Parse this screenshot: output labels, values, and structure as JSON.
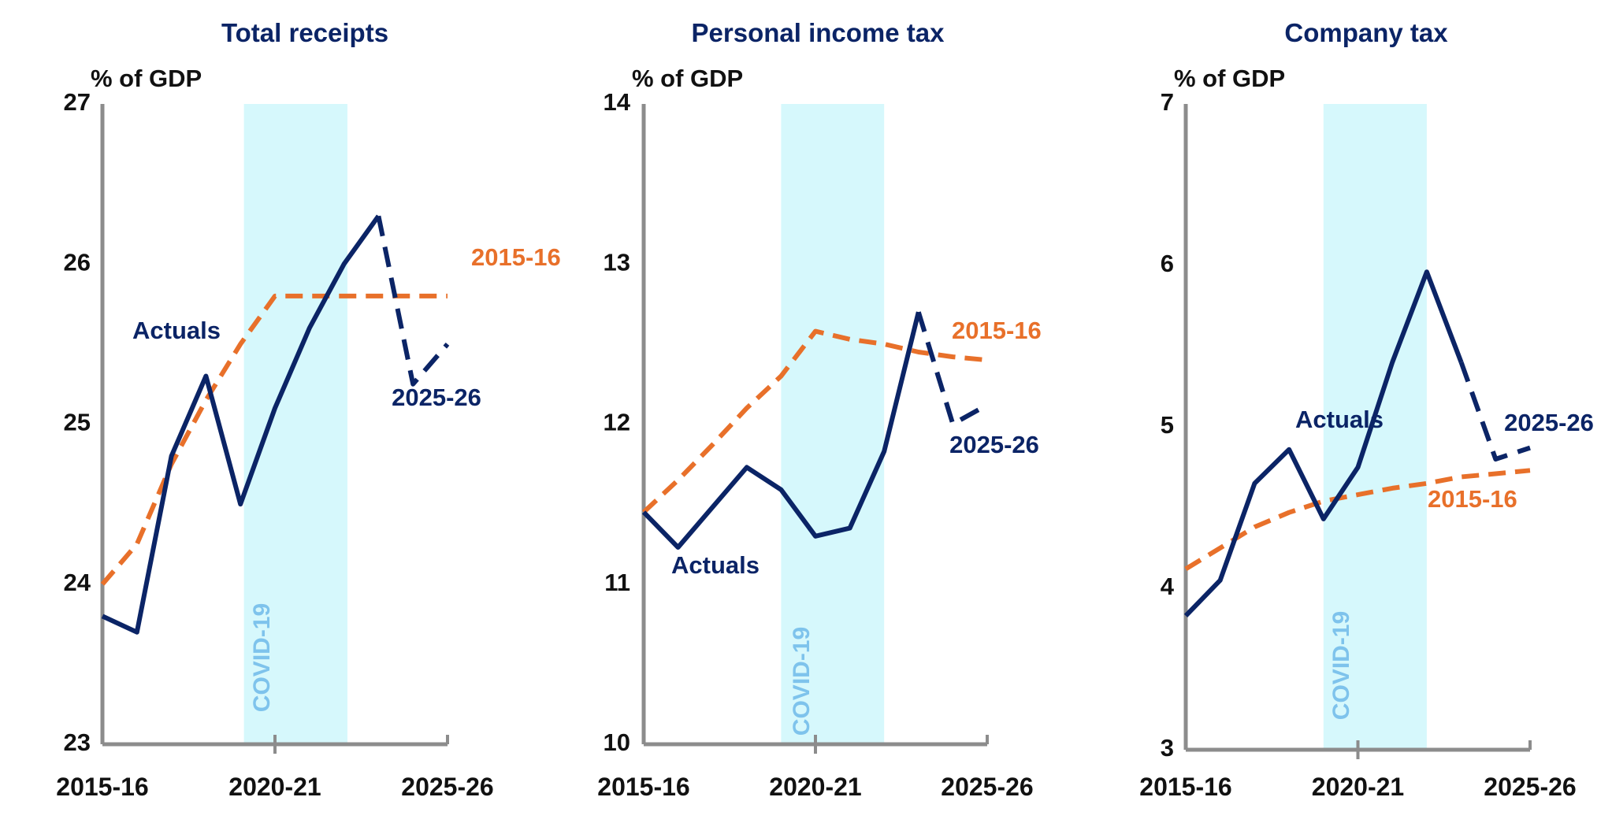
{
  "colors": {
    "actuals": "#0b2466",
    "baseline": "#e8702a",
    "covid_band": "#d6f8fc",
    "covid_text": "#7ec3ec",
    "axis": "#8c8c8c",
    "title": "#0b2466",
    "text": "#111111"
  },
  "chart_data": [
    {
      "type": "line",
      "title": "Total receipts",
      "ylabel": "% of GDP",
      "ylim": [
        23,
        27
      ],
      "yticks": [
        "23",
        "24",
        "25",
        "26",
        "27"
      ],
      "x_labels": [
        "2015-16",
        "2020-21",
        "2025-26"
      ],
      "shaded_region": {
        "label": "COVID-19",
        "x_start": 4.1,
        "x_end": 7.1
      },
      "series": [
        {
          "name": "Actuals",
          "style": "solid",
          "x": [
            0,
            1,
            2,
            3,
            4,
            5,
            6,
            7,
            8
          ],
          "values": [
            23.8,
            23.7,
            24.8,
            25.3,
            24.5,
            25.1,
            25.6,
            26.0,
            26.3
          ]
        },
        {
          "name": "2025-26",
          "style": "dashed",
          "x": [
            8,
            9,
            10
          ],
          "values": [
            26.3,
            25.25,
            25.5
          ]
        },
        {
          "name": "2015-16",
          "style": "dashed",
          "x": [
            0,
            1,
            2,
            3,
            4,
            5,
            6,
            7,
            8,
            9,
            10
          ],
          "values": [
            24.0,
            24.25,
            24.75,
            25.15,
            25.5,
            25.8,
            25.8,
            25.8,
            25.8,
            25.8,
            25.8
          ]
        }
      ],
      "labels": {
        "actuals": "Actuals",
        "forecast": "2025-26",
        "baseline": "2015-16",
        "covid": "COVID-19"
      }
    },
    {
      "type": "line",
      "title": "Personal income tax",
      "ylabel": "% of GDP",
      "ylim": [
        10,
        14
      ],
      "yticks": [
        "10",
        "11",
        "12",
        "13",
        "14"
      ],
      "x_labels": [
        "2015-16",
        "2020-21",
        "2025-26"
      ],
      "shaded_region": {
        "label": "COVID-19",
        "x_start": 4.0,
        "x_end": 7.0
      },
      "series": [
        {
          "name": "Actuals",
          "style": "solid",
          "x": [
            0,
            1,
            2,
            3,
            4,
            5,
            6,
            7,
            8
          ],
          "values": [
            11.45,
            11.23,
            11.48,
            11.73,
            11.59,
            11.3,
            11.35,
            11.83,
            12.7
          ]
        },
        {
          "name": "2025-26",
          "style": "dashed",
          "x": [
            8,
            9,
            10
          ],
          "values": [
            12.7,
            12.0,
            12.12
          ]
        },
        {
          "name": "2015-16",
          "style": "dashed",
          "x": [
            0,
            1,
            2,
            3,
            4,
            5,
            6,
            7,
            8,
            9,
            10
          ],
          "values": [
            11.45,
            11.65,
            11.87,
            12.1,
            12.3,
            12.58,
            12.53,
            12.5,
            12.45,
            12.42,
            12.4
          ]
        }
      ],
      "labels": {
        "actuals": "Actuals",
        "forecast": "2025-26",
        "baseline": "2015-16",
        "covid": "COVID-19"
      }
    },
    {
      "type": "line",
      "title": "Company tax",
      "ylabel": "% of GDP",
      "ylim": [
        3,
        7
      ],
      "yticks": [
        "3",
        "4",
        "5",
        "6",
        "7"
      ],
      "x_labels": [
        "2015-16",
        "2020-21",
        "2025-26"
      ],
      "shaded_region": {
        "label": "COVID-19",
        "x_start": 4.0,
        "x_end": 7.0
      },
      "series": [
        {
          "name": "Actuals",
          "style": "solid",
          "x": [
            0,
            1,
            2,
            3,
            4,
            5,
            6,
            7,
            8
          ],
          "values": [
            3.83,
            4.05,
            4.65,
            4.86,
            4.43,
            4.75,
            5.4,
            5.96,
            5.4
          ]
        },
        {
          "name": "2025-26",
          "style": "dashed",
          "x": [
            8,
            9,
            10
          ],
          "values": [
            5.4,
            4.8,
            4.87
          ]
        },
        {
          "name": "2015-16",
          "style": "dashed",
          "x": [
            0,
            1,
            2,
            3,
            4,
            5,
            6,
            7,
            8,
            9,
            10
          ],
          "values": [
            4.12,
            4.25,
            4.38,
            4.47,
            4.54,
            4.58,
            4.62,
            4.65,
            4.69,
            4.71,
            4.73
          ]
        }
      ],
      "labels": {
        "actuals": "Actuals",
        "forecast": "2025-26",
        "baseline": "2015-16",
        "covid": "COVID-19"
      }
    }
  ]
}
